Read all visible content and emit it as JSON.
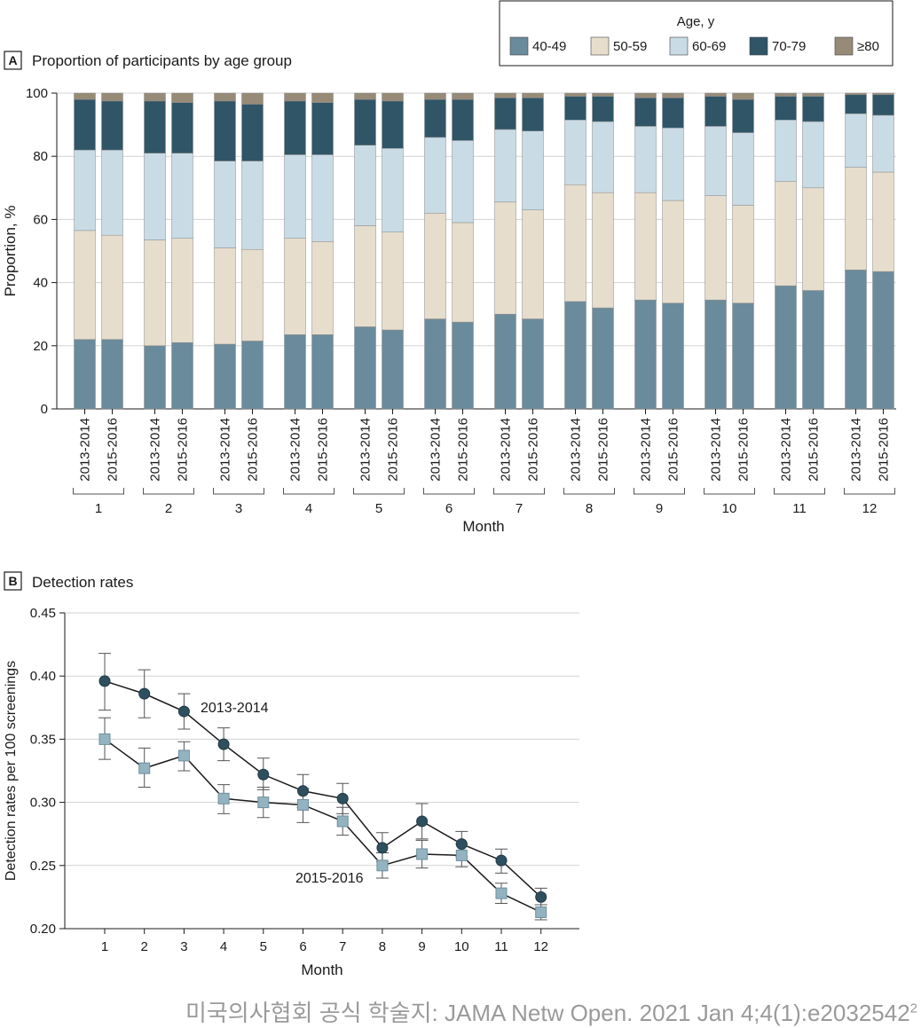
{
  "colors": {
    "40-49": "#6a8b9c",
    "50-59": "#e6ddcc",
    "60-69": "#c9dbe5",
    "70-79": "#2f5567",
    "80plus": "#978b78",
    "line2013": "#2e4f5e",
    "line2015": "#94b3c1"
  },
  "panel_a": {
    "letter": "A",
    "title": "Proportion of participants by age group",
    "legend_title": "Age, y",
    "legend": [
      "40-49",
      "50-59",
      "60-69",
      "70-79",
      "≥80"
    ]
  },
  "panel_b": {
    "letter": "B",
    "title": "Detection rates",
    "label_2013": "2013-2014",
    "label_2015": "2015-2016"
  },
  "caption": {
    "text": "미국의사협회 공식 학술지: JAMA Netw Open. 2021 Jan 4;4(1):e2032542",
    "superscript": "2"
  },
  "chart_data": [
    {
      "type": "bar",
      "stacked": true,
      "title": "Proportion of participants by age group",
      "xlabel": "Month",
      "ylabel": "Proportion, %",
      "ylim": [
        0,
        100
      ],
      "yticks": [
        0,
        20,
        40,
        60,
        80,
        100
      ],
      "months": [
        "1",
        "2",
        "3",
        "4",
        "5",
        "6",
        "7",
        "8",
        "9",
        "10",
        "11",
        "12"
      ],
      "periods": [
        "2013-2014",
        "2015-2016"
      ],
      "legend_title": "Age, y",
      "legend_placement": "top-right",
      "grid": "horizontal",
      "series": [
        {
          "name": "40-49",
          "values": [
            [
              22,
              22
            ],
            [
              20,
              21
            ],
            [
              20.5,
              21.5
            ],
            [
              23.5,
              23.5
            ],
            [
              26,
              25
            ],
            [
              28.5,
              27.5
            ],
            [
              30,
              28.5
            ],
            [
              34,
              32
            ],
            [
              34.5,
              33.5
            ],
            [
              34.5,
              33.5
            ],
            [
              39,
              37.5
            ],
            [
              44,
              43.5
            ]
          ]
        },
        {
          "name": "50-59",
          "values": [
            [
              34.5,
              33
            ],
            [
              33.5,
              33
            ],
            [
              30.5,
              29
            ],
            [
              30.5,
              29.5
            ],
            [
              32,
              31
            ],
            [
              33.5,
              31.5
            ],
            [
              35.5,
              34.5
            ],
            [
              37,
              36.5
            ],
            [
              34,
              32.5
            ],
            [
              33,
              31
            ],
            [
              33,
              32.5
            ],
            [
              32.5,
              31.5
            ]
          ]
        },
        {
          "name": "60-69",
          "values": [
            [
              25.5,
              27
            ],
            [
              27.5,
              27
            ],
            [
              27.5,
              28
            ],
            [
              26.5,
              27.5
            ],
            [
              25.5,
              26.5
            ],
            [
              24,
              26
            ],
            [
              23,
              25
            ],
            [
              20.5,
              22.5
            ],
            [
              21,
              23
            ],
            [
              22,
              23
            ],
            [
              19.5,
              21
            ],
            [
              17,
              18
            ]
          ]
        },
        {
          "name": "70-79",
          "values": [
            [
              16,
              15.5
            ],
            [
              16.5,
              16
            ],
            [
              19,
              18
            ],
            [
              17,
              16.5
            ],
            [
              14.5,
              15
            ],
            [
              12,
              13
            ],
            [
              10,
              10.5
            ],
            [
              7.5,
              8
            ],
            [
              9,
              9.5
            ],
            [
              9.5,
              10.5
            ],
            [
              7.5,
              8
            ],
            [
              6,
              6.5
            ]
          ]
        },
        {
          "name": "≥80",
          "values": [
            [
              2,
              2.5
            ],
            [
              2.5,
              3
            ],
            [
              2.5,
              3.5
            ],
            [
              2.5,
              3
            ],
            [
              2,
              2.5
            ],
            [
              2,
              2
            ],
            [
              1.5,
              1.5
            ],
            [
              1,
              1
            ],
            [
              1.5,
              1.5
            ],
            [
              1,
              2
            ],
            [
              1,
              1
            ],
            [
              0.5,
              0.5
            ]
          ]
        }
      ]
    },
    {
      "type": "line",
      "title": "Detection rates",
      "xlabel": "Month",
      "ylabel": "Detection rates per 100 screenings",
      "ylim": [
        0.2,
        0.45
      ],
      "yticks": [
        "0.20",
        "0.25",
        "0.30",
        "0.35",
        "0.40",
        "0.45"
      ],
      "x": [
        1,
        2,
        3,
        4,
        5,
        6,
        7,
        8,
        9,
        10,
        11,
        12
      ],
      "grid": "horizontal",
      "series": [
        {
          "name": "2013-2014",
          "marker": "circle",
          "values": [
            0.396,
            0.386,
            0.372,
            0.346,
            0.322,
            0.309,
            0.303,
            0.264,
            0.285,
            0.267,
            0.254,
            0.225
          ],
          "lower": [
            0.373,
            0.367,
            0.358,
            0.333,
            0.31,
            0.296,
            0.291,
            0.253,
            0.271,
            0.257,
            0.244,
            0.219
          ],
          "upper": [
            0.418,
            0.405,
            0.386,
            0.359,
            0.335,
            0.322,
            0.315,
            0.276,
            0.299,
            0.277,
            0.263,
            0.232
          ]
        },
        {
          "name": "2015-2016",
          "marker": "square",
          "values": [
            0.35,
            0.327,
            0.337,
            0.303,
            0.3,
            0.298,
            0.285,
            0.25,
            0.259,
            0.258,
            0.228,
            0.213
          ],
          "lower": [
            0.334,
            0.312,
            0.325,
            0.291,
            0.288,
            0.284,
            0.274,
            0.24,
            0.248,
            0.249,
            0.22,
            0.207
          ],
          "upper": [
            0.367,
            0.343,
            0.348,
            0.314,
            0.312,
            0.311,
            0.296,
            0.26,
            0.27,
            0.267,
            0.236,
            0.219
          ]
        }
      ]
    }
  ]
}
